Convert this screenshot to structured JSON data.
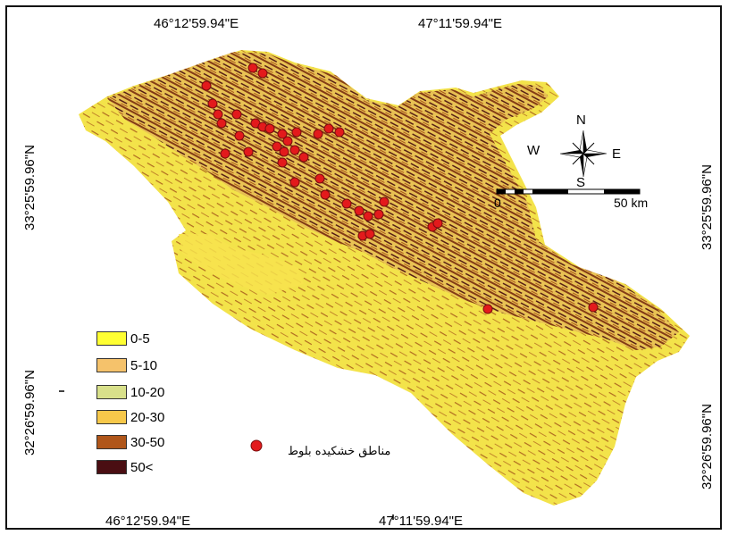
{
  "coordinates": {
    "top_left": "46°12'59.94\"E",
    "top_right": "47°11'59.94\"E",
    "bottom_left": "46°12'59.94\"E",
    "bottom_right": "47°11'59.94\"E",
    "left_upper": "33°25'59.96\"N",
    "left_lower": "32°26'59.96\"N",
    "right_upper": "33°25'59.96\"N",
    "right_lower": "32°26'59.96\"N"
  },
  "compass": {
    "north": "N",
    "south": "S",
    "east": "E",
    "west": "W"
  },
  "scale_bar": {
    "start": "0",
    "end": "50 km"
  },
  "legend": {
    "classes": [
      {
        "label": "0-5",
        "color": "#ffff33"
      },
      {
        "label": "5-10",
        "color": "#f5c26b"
      },
      {
        "label": "10-20",
        "color": "#d8e08a"
      },
      {
        "label": "20-30",
        "color": "#f7c84a"
      },
      {
        "label": "30-50",
        "color": "#b0561a"
      },
      {
        "label": "50<",
        "color": "#4a0e12"
      }
    ],
    "points_label": "مناطق خشکیده بلوط",
    "points_color": "#e31a1c"
  }
}
